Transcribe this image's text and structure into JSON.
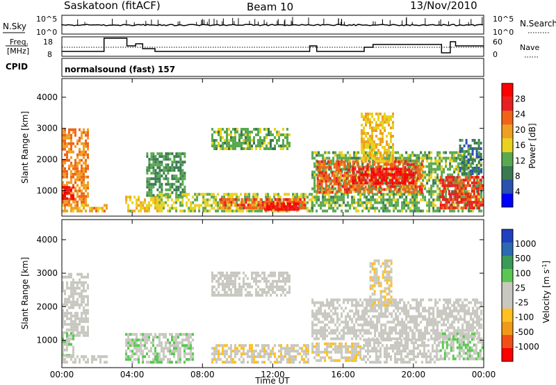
{
  "header": {
    "station": "Saskatoon (fitACF)",
    "beam": "Beam 10",
    "date": "13/Nov/2010"
  },
  "noise_panel": {
    "left_label": "N.Sky",
    "left_ticks": [
      "10^5",
      "10^0"
    ],
    "right_ticks": [
      "10^5",
      "10^0"
    ],
    "right_label": "N.Search",
    "right_legend_style": "dotted"
  },
  "freq_panel": {
    "left_label_1": "Freq.",
    "left_label_2": "[MHz]",
    "left_ticks": [
      "18",
      "8"
    ],
    "right_ticks": [
      "60",
      "0"
    ],
    "right_label": "Nave",
    "right_legend_style": "dotted"
  },
  "cpid_panel": {
    "label": "CPID",
    "text": "normalsound (fast) 157"
  },
  "chart_data": [
    {
      "type": "heatmap",
      "title": "",
      "xlabel": "Time UT",
      "ylabel": "Slant Range [km]",
      "x_ticks": [
        "00:00",
        "04:00",
        "08:00",
        "12:00",
        "16:00",
        "20:00",
        "00:00"
      ],
      "x_range_hours": [
        0,
        24
      ],
      "y_ticks": [
        1000,
        2000,
        3000,
        4000
      ],
      "ylim": [
        180,
        4600
      ],
      "colorbar": {
        "label": "Power [dB]",
        "ticks": [
          "4",
          "8",
          "12",
          "16",
          "20",
          "24",
          "28"
        ],
        "range": [
          0,
          30
        ],
        "colors": [
          "#0000ff",
          "#2a50b0",
          "#3a7a50",
          "#5aa850",
          "#e8d21e",
          "#f0a020",
          "#f06418",
          "#e82020",
          "#ff0000"
        ]
      },
      "regions": [
        {
          "t0": 0.0,
          "t1": 1.5,
          "r0": 500,
          "r1": 3000,
          "v": 20
        },
        {
          "t0": 0.0,
          "t1": 0.6,
          "r0": 700,
          "r1": 1100,
          "v": 26
        },
        {
          "t0": 0.0,
          "t1": 2.5,
          "r0": 300,
          "r1": 500,
          "v": 18
        },
        {
          "t0": 3.6,
          "t1": 5.5,
          "r0": 300,
          "r1": 800,
          "v": 16
        },
        {
          "t0": 4.8,
          "t1": 7.0,
          "r0": 800,
          "r1": 2200,
          "v": 10
        },
        {
          "t0": 5.5,
          "t1": 14.2,
          "r0": 300,
          "r1": 900,
          "v": 14
        },
        {
          "t0": 9.0,
          "t1": 13.8,
          "r0": 400,
          "r1": 700,
          "v": 22
        },
        {
          "t0": 11.5,
          "t1": 13.5,
          "r0": 350,
          "r1": 600,
          "v": 27
        },
        {
          "t0": 8.5,
          "t1": 13.0,
          "r0": 2300,
          "r1": 3000,
          "v": 12
        },
        {
          "t0": 14.2,
          "t1": 23.9,
          "r0": 300,
          "r1": 2200,
          "v": 12
        },
        {
          "t0": 14.5,
          "t1": 20.5,
          "r0": 900,
          "r1": 1900,
          "v": 22
        },
        {
          "t0": 16.5,
          "t1": 20.0,
          "r0": 1200,
          "r1": 1700,
          "v": 27
        },
        {
          "t0": 17.0,
          "t1": 18.8,
          "r0": 1900,
          "r1": 3500,
          "v": 16
        },
        {
          "t0": 21.5,
          "t1": 23.9,
          "r0": 400,
          "r1": 1400,
          "v": 24
        },
        {
          "t0": 22.6,
          "t1": 23.9,
          "r0": 1500,
          "r1": 2600,
          "v": 8
        }
      ]
    },
    {
      "type": "heatmap",
      "title": "",
      "xlabel": "Time UT",
      "ylabel": "Slant Range [km]",
      "x_ticks": [
        "00:00",
        "04:00",
        "08:00",
        "12:00",
        "16:00",
        "20:00",
        "00:00"
      ],
      "x_range_hours": [
        0,
        24
      ],
      "y_ticks": [
        1000,
        2000,
        3000,
        4000
      ],
      "ylim": [
        180,
        4600
      ],
      "colorbar": {
        "label": "Velocity [m s^-1]",
        "ticks": [
          "1000",
          "500",
          "100",
          "25",
          "-25",
          "-100",
          "-500",
          "-1000"
        ],
        "range": [
          -1000,
          1000
        ],
        "colors": [
          "#ff0000",
          "#f05018",
          "#f09a18",
          "#ffc020",
          "#c8c8c0",
          "#c8c8c0",
          "#5ac850",
          "#3a9a5a",
          "#2a6ab0",
          "#2040c0"
        ]
      },
      "regions": [
        {
          "t0": 0.0,
          "t1": 1.5,
          "r0": 1100,
          "r1": 3000,
          "v": 0
        },
        {
          "t0": 0.0,
          "t1": 0.6,
          "r0": 500,
          "r1": 1200,
          "v": 150
        },
        {
          "t0": 0.0,
          "t1": 2.5,
          "r0": 300,
          "r1": 500,
          "v": 0
        },
        {
          "t0": 3.6,
          "t1": 7.5,
          "r0": 300,
          "r1": 1200,
          "v": 120
        },
        {
          "t0": 8.5,
          "t1": 14.0,
          "r0": 300,
          "r1": 800,
          "v": -120
        },
        {
          "t0": 8.5,
          "t1": 13.0,
          "r0": 2300,
          "r1": 3000,
          "v": 0
        },
        {
          "t0": 14.2,
          "t1": 23.9,
          "r0": 1000,
          "r1": 2200,
          "v": 0
        },
        {
          "t0": 14.2,
          "t1": 17.0,
          "r0": 350,
          "r1": 900,
          "v": -130
        },
        {
          "t0": 17.0,
          "t1": 21.5,
          "r0": 300,
          "r1": 1000,
          "v": 0
        },
        {
          "t0": 21.5,
          "t1": 23.9,
          "r0": 400,
          "r1": 1200,
          "v": 140
        },
        {
          "t0": 17.5,
          "t1": 18.8,
          "r0": 2000,
          "r1": 3400,
          "v": -150
        }
      ]
    }
  ]
}
